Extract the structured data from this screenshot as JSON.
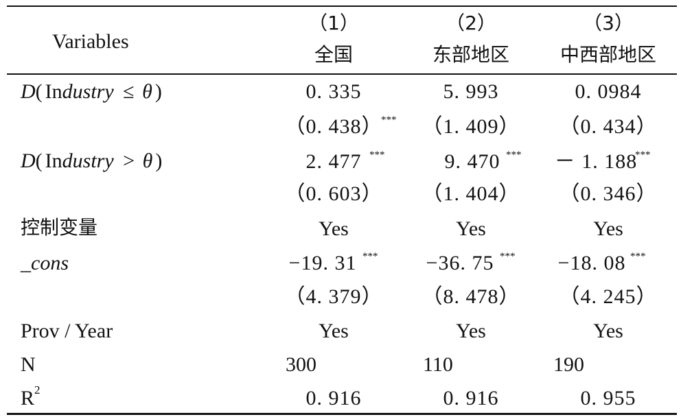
{
  "header": {
    "variables_label": "Variables",
    "columns": [
      {
        "number": "（1）",
        "name": "全国"
      },
      {
        "number": "（2）",
        "name": "东部地区"
      },
      {
        "number": "（3）",
        "name": "中西部地区"
      }
    ]
  },
  "rows": {
    "d_low": {
      "label_d": "D",
      "label_open": "(",
      "label_industry": "Industry",
      "label_op": "≤",
      "label_theta": "θ",
      "label_close": ")",
      "values": [
        "0. 335",
        "5. 993",
        "0. 0984"
      ],
      "se": [
        "（0. 438）",
        "（1. 409）",
        "（0. 434）"
      ],
      "se_stars": [
        "***",
        "",
        ""
      ]
    },
    "d_high": {
      "label_d": "D",
      "label_open": "(",
      "label_industry": "Industry",
      "label_op": ">",
      "label_theta": "θ",
      "label_close": ")",
      "values": [
        "2. 477",
        "9. 470",
        "－ 1. 188"
      ],
      "stars": [
        "***",
        "***",
        "***"
      ],
      "se": [
        "（0. 603）",
        "（1. 404）",
        "（0. 346）"
      ]
    },
    "controls": {
      "label": "控制变量",
      "values": [
        "Yes",
        "Yes",
        "Yes"
      ]
    },
    "cons": {
      "label": "_cons",
      "values": [
        "−19. 31",
        "−36. 75",
        "−18. 08"
      ],
      "stars": [
        "***",
        "***",
        "***"
      ],
      "se": [
        "（4. 379）",
        "（8. 478）",
        "（4. 245）"
      ]
    },
    "prov_year": {
      "label": "Prov / Year",
      "values": [
        "Yes",
        "Yes",
        "Yes"
      ]
    },
    "n": {
      "label": "N",
      "values": [
        "300",
        "110",
        "190"
      ]
    },
    "r2": {
      "label": "R",
      "label_sup": "2",
      "values": [
        "0. 916",
        "0. 916",
        "0. 955"
      ]
    }
  }
}
